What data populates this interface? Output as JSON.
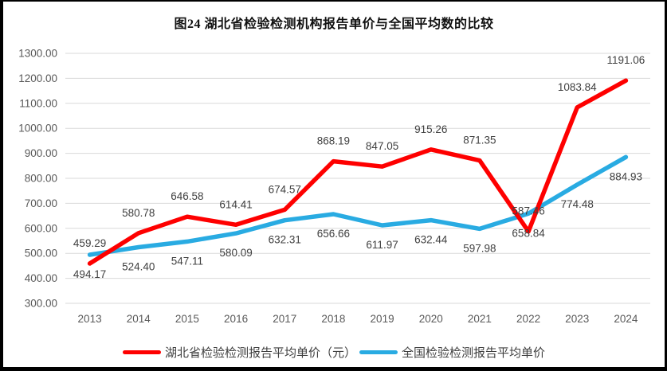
{
  "title": "图24 湖北省检验检测机构报告单价与全国平均数的比较",
  "colors": {
    "hubei_line": "#FE0000",
    "national_line": "#29ABE2",
    "gridline": "#D9D9D9",
    "axis_text": "#595959",
    "data_label_text": "#404040"
  },
  "legend": [
    {
      "label": "湖北省检验检测报告平均单价（元）",
      "color": "#FE0000"
    },
    {
      "label": "全国检验检测报告平均单价",
      "color": "#29ABE2"
    }
  ],
  "chart_data": {
    "type": "line",
    "title": "图24 湖北省检验检测机构报告单价与全国平均数的比较",
    "categories": [
      "2013",
      "2014",
      "2015",
      "2016",
      "2017",
      "2018",
      "2019",
      "2020",
      "2021",
      "2022",
      "2023",
      "2024"
    ],
    "series": [
      {
        "name": "湖北省检验检测报告平均单价（元）",
        "color": "#FE0000",
        "values": [
          459.29,
          580.78,
          646.58,
          614.41,
          674.57,
          868.19,
          847.05,
          915.26,
          871.35,
          587.46,
          1083.84,
          1191.06
        ],
        "labels": [
          "459.29",
          "580.78",
          "646.58",
          "614.41",
          "674.57",
          "868.19",
          "847.05",
          "915.26",
          "871.35",
          "587.46",
          "1083.84",
          "1191.06"
        ],
        "label_position": "above"
      },
      {
        "name": "全国检验检测报告平均单价",
        "color": "#29ABE2",
        "values": [
          494.17,
          524.4,
          547.11,
          580.09,
          632.31,
          656.66,
          611.97,
          632.44,
          597.98,
          658.84,
          774.48,
          884.93
        ],
        "labels": [
          "494.17",
          "524.40",
          "547.11",
          "580.09",
          "632.31",
          "656.66",
          "611.97",
          "632.44",
          "597.98",
          "658.84",
          "774.48",
          "884.93"
        ],
        "label_position": "below"
      }
    ],
    "ylim": [
      300,
      1300
    ],
    "ytick_step": 100,
    "ytick_labels": [
      "300.00",
      "400.00",
      "500.00",
      "600.00",
      "700.00",
      "800.00",
      "900.00",
      "1000.00",
      "1100.00",
      "1200.00",
      "1300.00"
    ],
    "grid": "horizontal",
    "legend_position": "bottom",
    "xlabel": "",
    "ylabel": ""
  }
}
